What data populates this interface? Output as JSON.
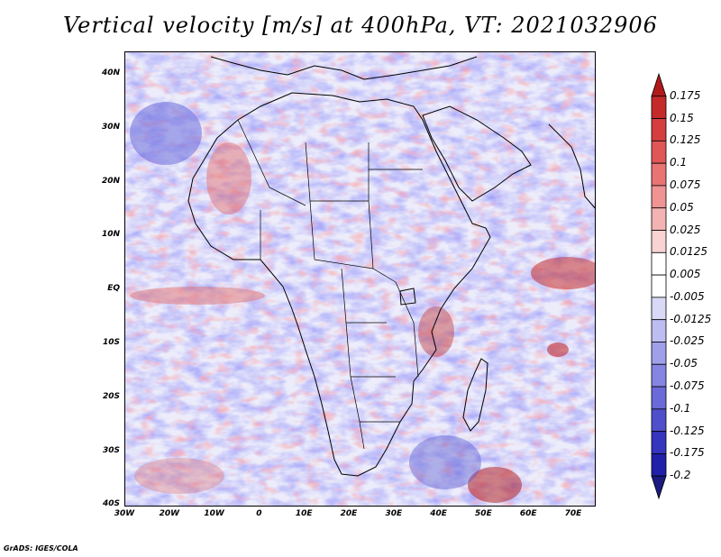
{
  "title": "Vertical velocity [m/s] at 400hPa, VT: 2021032906",
  "credit": "GrADS: IGES/COLA",
  "map": {
    "variable": "Vertical velocity",
    "units": "m/s",
    "level": "400hPa",
    "valid_time": "2021032906",
    "lon_range": [
      -30,
      75
    ],
    "lat_range": [
      -40,
      45
    ],
    "lat_labels": [
      "40N",
      "30N",
      "20N",
      "10N",
      "EQ",
      "10S",
      "20S",
      "30S",
      "40S"
    ],
    "lon_labels": [
      "30W",
      "20W",
      "10W",
      "0",
      "10E",
      "20E",
      "30E",
      "40E",
      "50E",
      "60E",
      "70E"
    ]
  },
  "colorbar": {
    "levels": [
      "0.175",
      "0.15",
      "0.125",
      "0.1",
      "0.075",
      "0.05",
      "0.025",
      "0.0125",
      "0.005",
      "-0.005",
      "-0.0125",
      "-0.025",
      "-0.05",
      "-0.075",
      "-0.1",
      "-0.125",
      "-0.175",
      "-0.2"
    ],
    "colors": [
      "#b01a1a",
      "#c52a2a",
      "#d43e3e",
      "#df5757",
      "#e87474",
      "#ef9393",
      "#f4b3b3",
      "#f9d3d3",
      "#ffffff",
      "#ffffff",
      "#d9d9f7",
      "#bdbdf1",
      "#a0a0ea",
      "#8585e2",
      "#6a6ad8",
      "#4f4fcc",
      "#3535bd",
      "#2020a8",
      "#1a1a7f"
    ]
  }
}
